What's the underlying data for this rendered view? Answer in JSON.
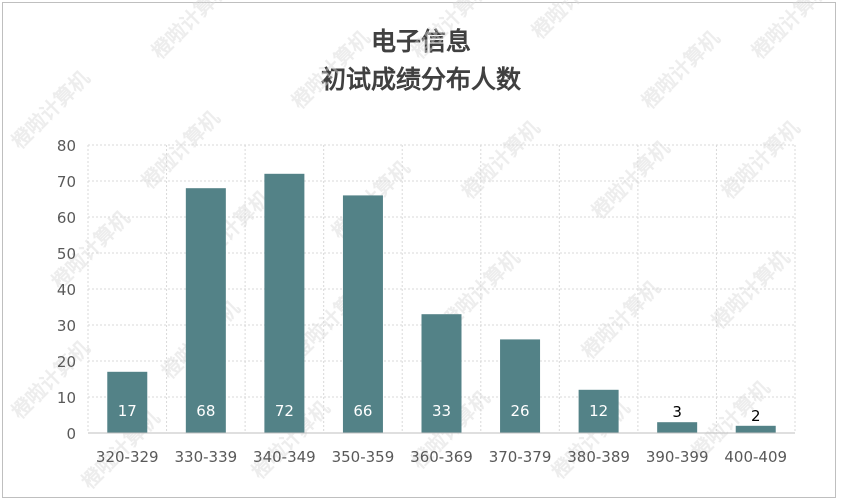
{
  "chart_data": {
    "type": "bar",
    "title": "电子信息",
    "subtitle": "初试成绩分布人数",
    "categories": [
      "320-329",
      "330-339",
      "340-349",
      "350-359",
      "360-369",
      "370-379",
      "380-389",
      "390-399",
      "400-409"
    ],
    "values": [
      17,
      68,
      72,
      66,
      33,
      26,
      12,
      3,
      2
    ],
    "ylim": [
      0,
      80
    ],
    "yticks": [
      0,
      10,
      20,
      30,
      40,
      50,
      60,
      70,
      80
    ],
    "grid": true,
    "legend": "none",
    "colors": {
      "bar": "#538287",
      "grid": "#d9d9d9",
      "label_inside": "#ffffff",
      "label_outside": "#000000"
    }
  },
  "watermark": "橙啦计算机"
}
